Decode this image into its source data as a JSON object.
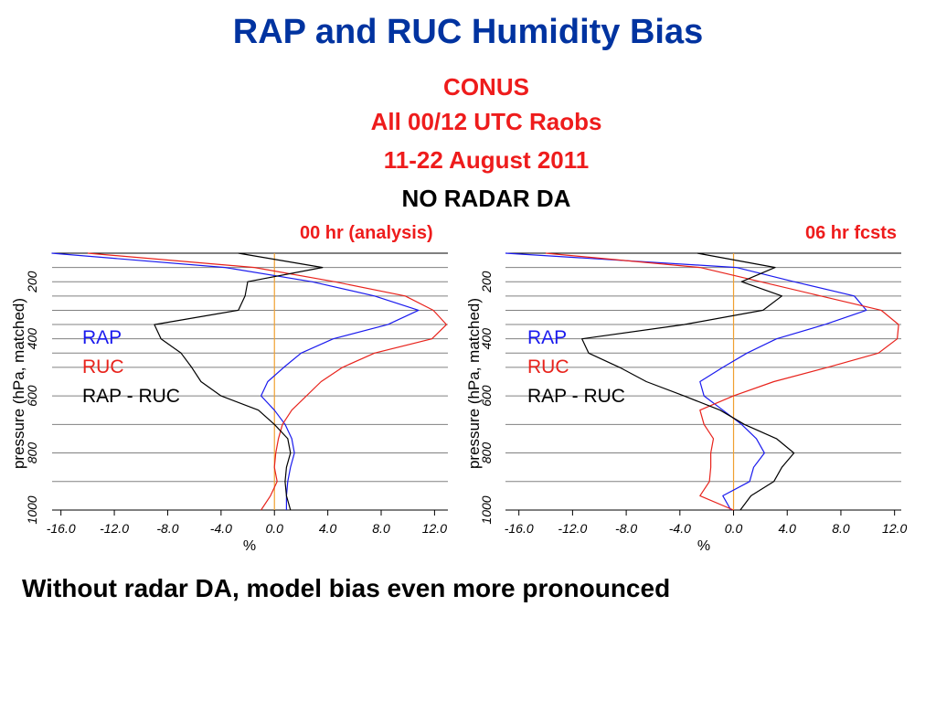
{
  "title": "RAP and RUC Humidity Bias",
  "subtitle_lines": [
    "CONUS",
    "All 00/12 UTC Raobs",
    "11-22 August 2011",
    "NO RADAR DA"
  ],
  "caption": "Without radar DA, model bias even more pronounced",
  "colors": {
    "title": "#0033a0",
    "subtitle_red": "#ee1c1c",
    "rap": "#1a1aee",
    "ruc": "#e8231c",
    "diff": "#000000",
    "zero_line": "#f0a030",
    "grid": "#808080"
  },
  "chart_data": [
    {
      "type": "line",
      "title": "00 hr (analysis)",
      "xlabel": "%",
      "ylabel": "pressure (hPa, matched)",
      "xlim": [
        -16.8,
        13.0
      ],
      "ylim": [
        1000,
        100
      ],
      "x_ticks": [
        "-16.0",
        "-12.0",
        "-8.0",
        "-4.0",
        "0.0",
        "4.0",
        "8.0",
        "12.0"
      ],
      "y_ticks": [
        "200",
        "400",
        "600",
        "800",
        "1000"
      ],
      "grid": true,
      "legend": [
        "RAP",
        "RUC",
        "RAP - RUC"
      ],
      "legend_position": "left",
      "series": [
        {
          "name": "RAP",
          "points": [
            [
              -16.7,
              100
            ],
            [
              -3.7,
              150
            ],
            [
              2.8,
              200
            ],
            [
              7.5,
              250
            ],
            [
              10.8,
              300
            ],
            [
              8.5,
              350
            ],
            [
              4.4,
              400
            ],
            [
              2.0,
              450
            ],
            [
              0.7,
              500
            ],
            [
              -0.5,
              550
            ],
            [
              -1.0,
              600
            ],
            [
              0.0,
              650
            ],
            [
              0.8,
              700
            ],
            [
              1.3,
              750
            ],
            [
              1.5,
              800
            ],
            [
              1.2,
              850
            ],
            [
              1.0,
              900
            ],
            [
              0.9,
              950
            ],
            [
              0.9,
              1000
            ]
          ]
        },
        {
          "name": "RUC",
          "points": [
            [
              -14.0,
              100
            ],
            [
              -1.5,
              150
            ],
            [
              4.5,
              200
            ],
            [
              9.8,
              250
            ],
            [
              11.9,
              300
            ],
            [
              12.9,
              350
            ],
            [
              11.8,
              400
            ],
            [
              7.5,
              450
            ],
            [
              5.1,
              500
            ],
            [
              3.5,
              550
            ],
            [
              1.3,
              650
            ],
            [
              0.6,
              700
            ],
            [
              0.3,
              750
            ],
            [
              0.1,
              800
            ],
            [
              0.0,
              850
            ],
            [
              0.2,
              900
            ],
            [
              -0.3,
              950
            ],
            [
              -1.0,
              1000
            ]
          ]
        },
        {
          "name": "RAP - RUC",
          "points": [
            [
              -2.7,
              100
            ],
            [
              3.6,
              150
            ],
            [
              -2.0,
              200
            ],
            [
              -2.2,
              250
            ],
            [
              -2.7,
              300
            ],
            [
              -9.0,
              350
            ],
            [
              -8.5,
              400
            ],
            [
              -7.0,
              450
            ],
            [
              -6.2,
              500
            ],
            [
              -5.5,
              550
            ],
            [
              -4.0,
              600
            ],
            [
              -1.2,
              650
            ],
            [
              0.0,
              700
            ],
            [
              1.0,
              750
            ],
            [
              1.2,
              800
            ],
            [
              0.9,
              850
            ],
            [
              0.8,
              900
            ],
            [
              0.9,
              950
            ],
            [
              1.2,
              1000
            ]
          ]
        }
      ]
    },
    {
      "type": "line",
      "title": "06 hr fcsts",
      "xlabel": "%",
      "ylabel": "pressure (hPa, matched)",
      "xlim": [
        -17.0,
        12.5
      ],
      "ylim": [
        1000,
        100
      ],
      "x_ticks": [
        "-16.0",
        "-12.0",
        "-8.0",
        "-4.0",
        "0.0",
        "4.0",
        "8.0",
        "12.0"
      ],
      "y_ticks": [
        "200",
        "400",
        "600",
        "800",
        "1000"
      ],
      "grid": true,
      "legend": [
        "RAP",
        "RUC",
        "RAP - RUC"
      ],
      "legend_position": "left",
      "series": [
        {
          "name": "RAP",
          "points": [
            [
              -17.0,
              100
            ],
            [
              0.2,
              150
            ],
            [
              4.5,
              200
            ],
            [
              9.0,
              250
            ],
            [
              9.9,
              300
            ],
            [
              6.8,
              350
            ],
            [
              3.2,
              400
            ],
            [
              1.0,
              450
            ],
            [
              -0.8,
              500
            ],
            [
              -2.5,
              550
            ],
            [
              -2.2,
              600
            ],
            [
              -0.8,
              650
            ],
            [
              0.6,
              700
            ],
            [
              1.7,
              750
            ],
            [
              2.3,
              800
            ],
            [
              1.5,
              850
            ],
            [
              1.2,
              900
            ],
            [
              -0.8,
              950
            ],
            [
              -0.2,
              1000
            ]
          ]
        },
        {
          "name": "RUC",
          "points": [
            [
              -14.0,
              100
            ],
            [
              -2.5,
              150
            ],
            [
              2.0,
              200
            ],
            [
              6.5,
              250
            ],
            [
              11.0,
              300
            ],
            [
              12.3,
              350
            ],
            [
              12.2,
              400
            ],
            [
              10.8,
              450
            ],
            [
              7.0,
              500
            ],
            [
              3.0,
              550
            ],
            [
              0.0,
              600
            ],
            [
              -2.5,
              650
            ],
            [
              -2.2,
              700
            ],
            [
              -1.5,
              750
            ],
            [
              -1.7,
              800
            ],
            [
              -1.7,
              850
            ],
            [
              -1.8,
              900
            ],
            [
              -2.5,
              950
            ],
            [
              0.0,
              1000
            ]
          ]
        },
        {
          "name": "RAP - RUC",
          "points": [
            [
              -2.7,
              100
            ],
            [
              3.1,
              150
            ],
            [
              0.6,
              200
            ],
            [
              3.6,
              250
            ],
            [
              2.2,
              300
            ],
            [
              -3.7,
              350
            ],
            [
              -11.3,
              400
            ],
            [
              -10.8,
              450
            ],
            [
              -8.5,
              500
            ],
            [
              -6.5,
              550
            ],
            [
              -3.7,
              600
            ],
            [
              -1.0,
              650
            ],
            [
              0.8,
              700
            ],
            [
              3.2,
              750
            ],
            [
              4.5,
              800
            ],
            [
              3.6,
              850
            ],
            [
              3.0,
              900
            ],
            [
              1.3,
              950
            ],
            [
              0.5,
              1000
            ]
          ]
        }
      ]
    }
  ]
}
